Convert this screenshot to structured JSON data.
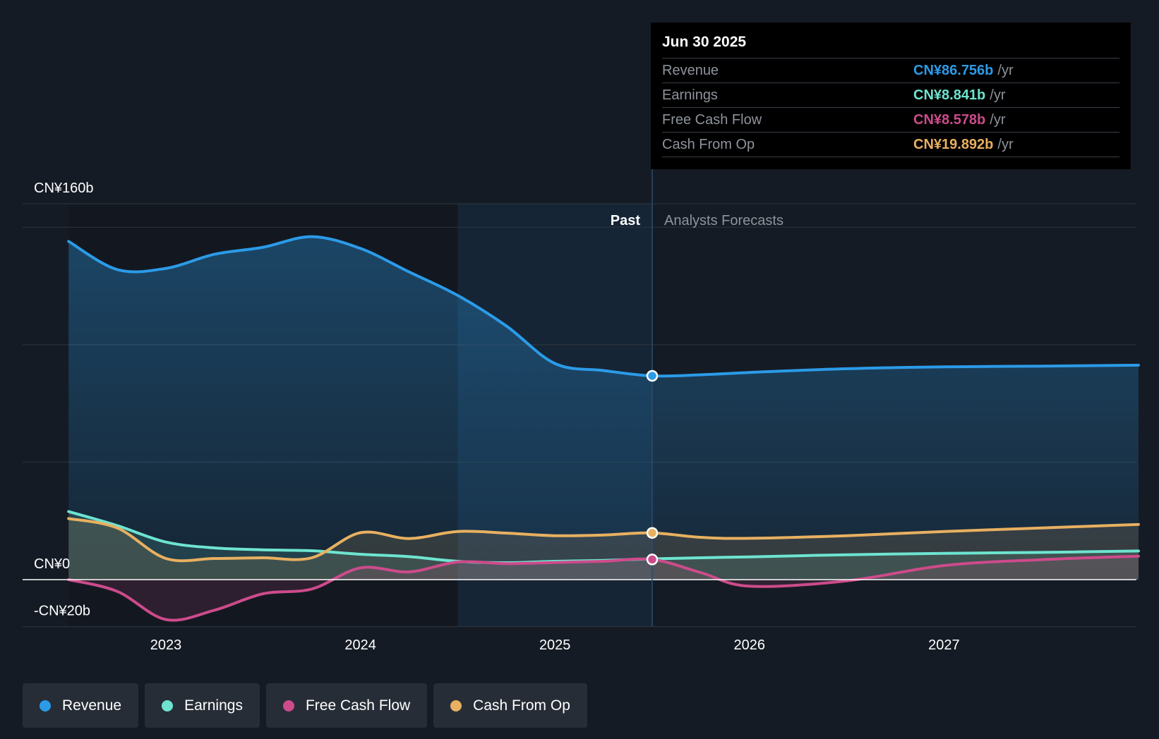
{
  "chart_data": {
    "type": "area",
    "title": "",
    "y_axis": {
      "labels": [
        "CN¥160b",
        "CN¥0",
        "-CN¥20b"
      ],
      "ylim": [
        -20,
        160
      ]
    },
    "x_axis": {
      "ticks": [
        "2023",
        "2024",
        "2025",
        "2026",
        "2027"
      ]
    },
    "regions": {
      "past_label": "Past",
      "forecast_label": "Analysts Forecasts"
    },
    "series": [
      {
        "name": "Revenue",
        "color": "#2b9be8",
        "points": [
          [
            2022.5,
            144
          ],
          [
            2022.75,
            132
          ],
          [
            2023.0,
            132.5
          ],
          [
            2023.25,
            138.5
          ],
          [
            2023.5,
            141.5
          ],
          [
            2023.75,
            146
          ],
          [
            2024.0,
            141
          ],
          [
            2024.25,
            131
          ],
          [
            2024.5,
            121
          ],
          [
            2024.75,
            108
          ],
          [
            2025.0,
            92
          ],
          [
            2025.25,
            89
          ],
          [
            2025.5,
            86.756
          ],
          [
            2025.75,
            87.2
          ],
          [
            2026.0,
            88.2
          ],
          [
            2026.5,
            89.8
          ],
          [
            2027.0,
            90.6
          ],
          [
            2027.5,
            90.9
          ],
          [
            2028.0,
            91.3
          ]
        ]
      },
      {
        "name": "Earnings",
        "color": "#6ee4d0",
        "points": [
          [
            2022.5,
            29
          ],
          [
            2022.75,
            23
          ],
          [
            2023.0,
            16
          ],
          [
            2023.25,
            13.5
          ],
          [
            2023.5,
            12.7
          ],
          [
            2023.75,
            12.3
          ],
          [
            2024.0,
            10.8
          ],
          [
            2024.25,
            9.8
          ],
          [
            2024.5,
            7.8
          ],
          [
            2024.75,
            7.2
          ],
          [
            2025.0,
            7.8
          ],
          [
            2025.25,
            8.2
          ],
          [
            2025.5,
            8.841
          ],
          [
            2025.75,
            9.3
          ],
          [
            2026.0,
            9.7
          ],
          [
            2026.5,
            10.6
          ],
          [
            2027.0,
            11.2
          ],
          [
            2027.5,
            11.6
          ],
          [
            2028.0,
            12.2
          ]
        ]
      },
      {
        "name": "Free Cash Flow",
        "color": "#cc4b8b",
        "points": [
          [
            2022.5,
            0
          ],
          [
            2022.75,
            -5
          ],
          [
            2023.0,
            -17
          ],
          [
            2023.25,
            -13
          ],
          [
            2023.5,
            -6
          ],
          [
            2023.75,
            -4
          ],
          [
            2024.0,
            5
          ],
          [
            2024.25,
            3.3
          ],
          [
            2024.5,
            7.5
          ],
          [
            2024.75,
            6.8
          ],
          [
            2025.0,
            7.3
          ],
          [
            2025.25,
            7.8
          ],
          [
            2025.5,
            8.578
          ],
          [
            2025.75,
            3
          ],
          [
            2026.0,
            -2.8
          ],
          [
            2026.5,
            -0.5
          ],
          [
            2027.0,
            6
          ],
          [
            2027.5,
            8.5
          ],
          [
            2028.0,
            10
          ]
        ]
      },
      {
        "name": "Cash From Op",
        "color": "#e8b060",
        "points": [
          [
            2022.5,
            26
          ],
          [
            2022.75,
            22
          ],
          [
            2023.0,
            9
          ],
          [
            2023.25,
            9
          ],
          [
            2023.5,
            9.3
          ],
          [
            2023.75,
            9.3
          ],
          [
            2024.0,
            20
          ],
          [
            2024.25,
            17.5
          ],
          [
            2024.5,
            20.5
          ],
          [
            2024.75,
            19.8
          ],
          [
            2025.0,
            18.7
          ],
          [
            2025.25,
            19
          ],
          [
            2025.5,
            19.892
          ],
          [
            2025.75,
            18
          ],
          [
            2026.0,
            17.6
          ],
          [
            2026.5,
            18.7
          ],
          [
            2027.0,
            20.5
          ],
          [
            2027.5,
            22
          ],
          [
            2028.0,
            23.5
          ]
        ]
      }
    ]
  },
  "tooltip": {
    "date": "Jun 30 2025",
    "unit": "/yr",
    "rows": [
      {
        "label": "Revenue",
        "value": "CN¥86.756b",
        "color": "#2b9be8"
      },
      {
        "label": "Earnings",
        "value": "CN¥8.841b",
        "color": "#6ee4d0"
      },
      {
        "label": "Free Cash Flow",
        "value": "CN¥8.578b",
        "color": "#cc4b8b"
      },
      {
        "label": "Cash From Op",
        "value": "CN¥19.892b",
        "color": "#e8b060"
      }
    ]
  },
  "legend": [
    {
      "label": "Revenue",
      "color": "#2b9be8"
    },
    {
      "label": "Earnings",
      "color": "#6ee4d0"
    },
    {
      "label": "Free Cash Flow",
      "color": "#cc4b8b"
    },
    {
      "label": "Cash From Op",
      "color": "#e8b060"
    }
  ]
}
